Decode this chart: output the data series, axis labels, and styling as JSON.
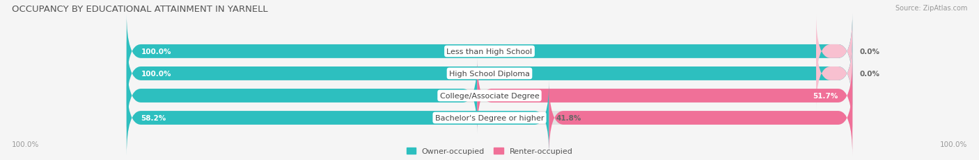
{
  "title": "OCCUPANCY BY EDUCATIONAL ATTAINMENT IN YARNELL",
  "source": "Source: ZipAtlas.com",
  "categories": [
    "Less than High School",
    "High School Diploma",
    "College/Associate Degree",
    "Bachelor's Degree or higher"
  ],
  "owner_values": [
    100.0,
    100.0,
    48.3,
    58.2
  ],
  "renter_values": [
    0.0,
    0.0,
    51.7,
    41.8
  ],
  "owner_color": "#2dbfbf",
  "renter_color": "#f07098",
  "bg_color": "#f5f5f5",
  "bar_bg_color": "#e2e2e2",
  "title_fontsize": 9.5,
  "source_fontsize": 7,
  "label_fontsize": 8,
  "value_fontsize": 7.5,
  "legend_fontsize": 8,
  "axis_label_fontsize": 7.5,
  "bar_height": 0.62,
  "bar_gap": 0.18
}
